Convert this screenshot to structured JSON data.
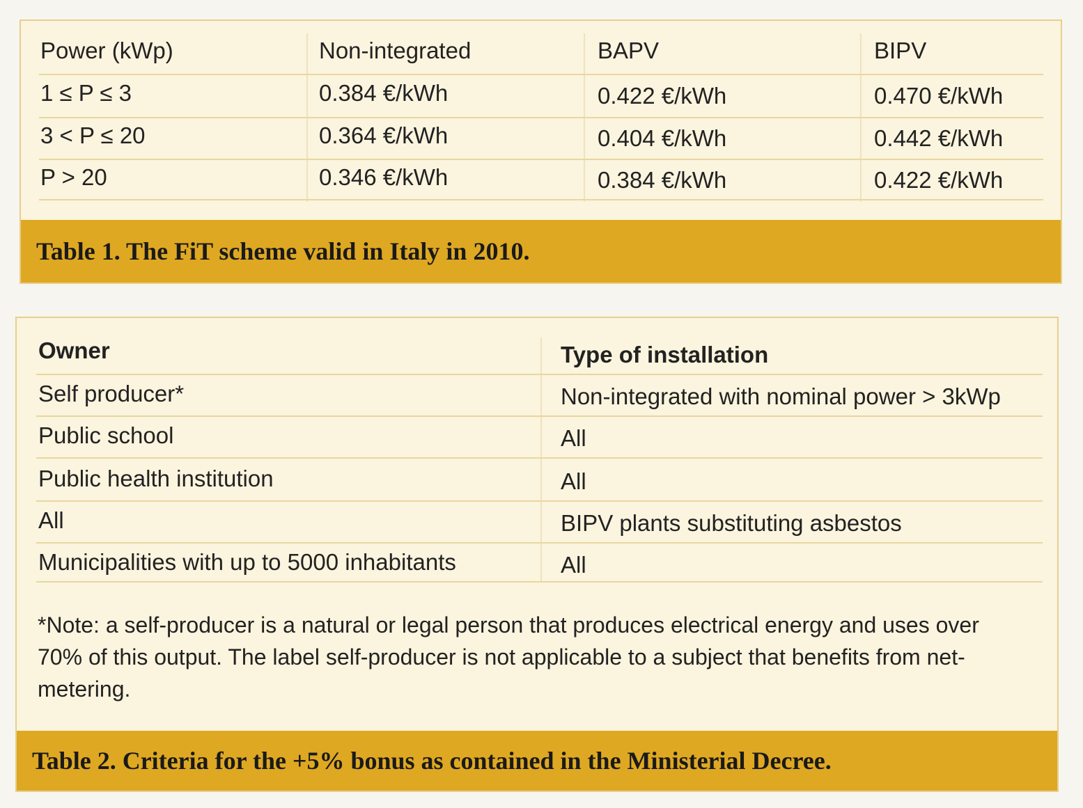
{
  "table1": {
    "header": [
      "Power (kWp)",
      "Non-integrated",
      "BAPV",
      "BIPV"
    ],
    "rows": [
      [
        "1 ≤ P ≤ 3",
        "0.384 €/kWh",
        "0.422 €/kWh",
        "0.470 €/kWh"
      ],
      [
        "3 < P ≤ 20",
        "0.364 €/kWh",
        "0.404 €/kWh",
        "0.442 €/kWh"
      ],
      [
        "P > 20",
        "0.346 €/kWh",
        "0.384 €/kWh",
        "0.422 €/kWh"
      ]
    ],
    "caption": "Table 1. The FiT scheme valid in Italy in 2010."
  },
  "table2": {
    "header": [
      "Owner",
      "Type of installation"
    ],
    "rows": [
      [
        "Self producer*",
        "Non-integrated with nominal power > 3kWp"
      ],
      [
        "Public school",
        "All"
      ],
      [
        "Public health institution",
        "All"
      ],
      [
        "All",
        "BIPV plants substituting asbestos"
      ],
      [
        "Municipalities with up to 5000 inhabitants",
        "All"
      ]
    ],
    "note": "*Note: a self-producer is a natural or legal person that produces electrical energy and uses over 70% of this output. The label self-producer is not applicable to a subject that benefits from net-metering.",
    "caption": "Table 2. Criteria for the +5% bonus as contained in the Ministerial Decree."
  }
}
